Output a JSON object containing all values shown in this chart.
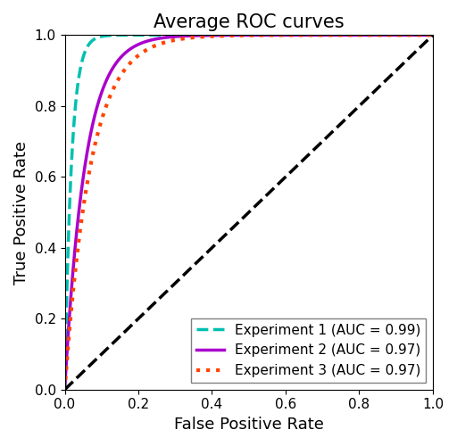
{
  "title": "Average ROC curves",
  "xlabel": "False Positive Rate",
  "ylabel": "True Positive Rate",
  "xlim": [
    0.0,
    1.0
  ],
  "ylim": [
    0.0,
    1.0
  ],
  "diagonal_color": "black",
  "diagonal_style": "--",
  "diagonal_lw": 2.5,
  "curves": [
    {
      "label": "Experiment 1 (AUC = 0.99)",
      "color": "#00c0b0",
      "linestyle": "--",
      "lw": 2.5,
      "beta": 0.018
    },
    {
      "label": "Experiment 2 (AUC = 0.97)",
      "color": "#aa00cc",
      "linestyle": "-",
      "lw": 2.5,
      "beta": 0.055
    },
    {
      "label": "Experiment 3 (AUC = 0.97)",
      "color": "#ff4400",
      "linestyle": ":",
      "lw": 3.0,
      "beta": 0.07
    }
  ],
  "title_fontsize": 15,
  "label_fontsize": 13,
  "tick_fontsize": 11,
  "legend_fontsize": 11
}
